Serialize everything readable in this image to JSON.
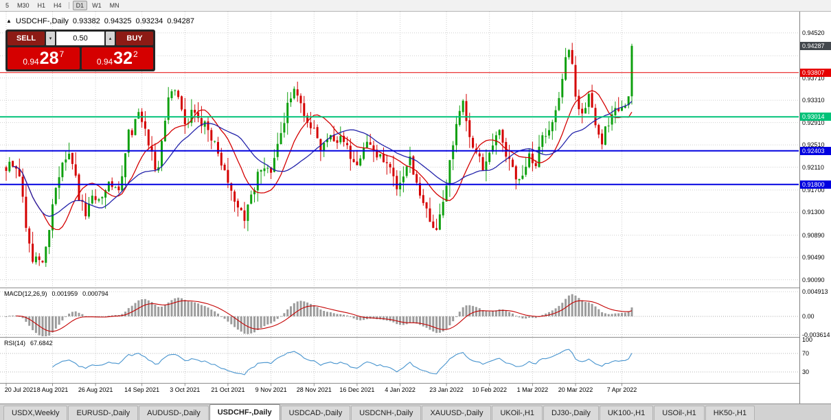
{
  "icons": {
    "symbol_arrow": "▲",
    "volume_down": "▾",
    "volume_up": "▴"
  },
  "toolbar": {
    "timeframes": [
      {
        "label": "5"
      },
      {
        "label": "M30"
      },
      {
        "label": "H1"
      },
      {
        "label": "H4",
        "divider_after": true
      },
      {
        "label": "D1",
        "active": true
      },
      {
        "label": "W1"
      },
      {
        "label": "MN"
      }
    ]
  },
  "header": {
    "symbol": "USDCHF-,Daily",
    "open": "0.93382",
    "high": "0.94325",
    "low": "0.93234",
    "close": "0.94287"
  },
  "trade_panel": {
    "sell_label": "SELL",
    "buy_label": "BUY",
    "volume": "0.50",
    "sell_price": {
      "prefix": "0.94",
      "pips": "28",
      "point": "7"
    },
    "buy_price": {
      "prefix": "0.94",
      "pips": "32",
      "point": "2"
    }
  },
  "colors": {
    "bull": "#0fa00f",
    "bear": "#d40000",
    "ma_fast": "#d40000",
    "ma_slow": "#2222aa",
    "level_red": "#e60000",
    "level_green": "#00c278",
    "level_blue": "#0000e0",
    "current_price_bg": "#43484d",
    "grid": "#cdcdcd",
    "macd_hist": "#9c9c9c",
    "macd_signal": "#c40000",
    "rsi_line": "#4693ce",
    "separator": "#8c8c8c",
    "trade_button": "#8d1b15",
    "trade_price_bg": "#d50000"
  },
  "chart_data": {
    "type": "candlestick",
    "symbol": "USDCHF-",
    "period": "Daily",
    "candle_count": 190,
    "seed": 5,
    "price_range": {
      "min": 0.8995,
      "max": 0.949
    },
    "last_candle": {
      "o": 0.93382,
      "h": 0.94325,
      "l": 0.93234,
      "c": 0.94287
    },
    "price_path": [
      [
        0,
        0.921
      ],
      [
        2,
        0.9222
      ],
      [
        4,
        0.9195
      ],
      [
        6,
        0.91
      ],
      [
        8,
        0.9048
      ],
      [
        10,
        0.9036
      ],
      [
        12,
        0.9062
      ],
      [
        14,
        0.915
      ],
      [
        17,
        0.9228
      ],
      [
        19,
        0.924
      ],
      [
        22,
        0.9158
      ],
      [
        24,
        0.913
      ],
      [
        26,
        0.9168
      ],
      [
        28,
        0.9152
      ],
      [
        31,
        0.9182
      ],
      [
        34,
        0.9162
      ],
      [
        37,
        0.9268
      ],
      [
        40,
        0.93
      ],
      [
        42,
        0.9282
      ],
      [
        44,
        0.9228
      ],
      [
        46,
        0.9206
      ],
      [
        48,
        0.93
      ],
      [
        50,
        0.9352
      ],
      [
        52,
        0.9338
      ],
      [
        54,
        0.9292
      ],
      [
        57,
        0.9312
      ],
      [
        60,
        0.9288
      ],
      [
        63,
        0.9258
      ],
      [
        65,
        0.9222
      ],
      [
        67,
        0.9188
      ],
      [
        70,
        0.9138
      ],
      [
        72,
        0.9112
      ],
      [
        74,
        0.9162
      ],
      [
        77,
        0.9215
      ],
      [
        80,
        0.9192
      ],
      [
        82,
        0.9242
      ],
      [
        85,
        0.933
      ],
      [
        88,
        0.935
      ],
      [
        91,
        0.9292
      ],
      [
        93,
        0.9282
      ],
      [
        95,
        0.9242
      ],
      [
        98,
        0.9272
      ],
      [
        101,
        0.9256
      ],
      [
        104,
        0.9232
      ],
      [
        106,
        0.9216
      ],
      [
        109,
        0.9256
      ],
      [
        112,
        0.9236
      ],
      [
        115,
        0.9212
      ],
      [
        118,
        0.9178
      ],
      [
        120,
        0.9192
      ],
      [
        122,
        0.922
      ],
      [
        125,
        0.9162
      ],
      [
        128,
        0.9112
      ],
      [
        130,
        0.9096
      ],
      [
        132,
        0.9146
      ],
      [
        134,
        0.9216
      ],
      [
        136,
        0.9282
      ],
      [
        138,
        0.933
      ],
      [
        141,
        0.9246
      ],
      [
        144,
        0.9216
      ],
      [
        146,
        0.9246
      ],
      [
        149,
        0.927
      ],
      [
        152,
        0.9222
      ],
      [
        155,
        0.9186
      ],
      [
        158,
        0.9226
      ],
      [
        160,
        0.9222
      ],
      [
        162,
        0.9266
      ],
      [
        165,
        0.9292
      ],
      [
        168,
        0.9372
      ],
      [
        170,
        0.9432
      ],
      [
        171,
        0.9402
      ],
      [
        172,
        0.9332
      ],
      [
        174,
        0.9312
      ],
      [
        176,
        0.9342
      ],
      [
        178,
        0.9296
      ],
      [
        180,
        0.9262
      ],
      [
        182,
        0.9292
      ],
      [
        184,
        0.9322
      ],
      [
        186,
        0.9312
      ],
      [
        188,
        0.9338
      ],
      [
        189,
        0.94287
      ]
    ],
    "y_axis": {
      "labels": [
        {
          "v": 0.9452,
          "t": "0.94520"
        },
        {
          "v": 0.9371,
          "t": "0.93710"
        },
        {
          "v": 0.9331,
          "t": "0.93310"
        },
        {
          "v": 0.9291,
          "t": "0.92910"
        },
        {
          "v": 0.9251,
          "t": "0.92510"
        },
        {
          "v": 0.9211,
          "t": "0.92110"
        },
        {
          "v": 0.917,
          "t": "0.91700"
        },
        {
          "v": 0.913,
          "t": "0.91300"
        },
        {
          "v": 0.9089,
          "t": "0.90890"
        },
        {
          "v": 0.9049,
          "t": "0.90490"
        },
        {
          "v": 0.9009,
          "t": "0.90090"
        }
      ],
      "grid": [
        0.9452,
        0.9411,
        0.9371,
        0.9331,
        0.9291,
        0.9251,
        0.9211,
        0.917,
        0.913,
        0.9089,
        0.9049,
        0.9009
      ]
    },
    "levels": [
      {
        "value": 0.93807,
        "text": "0.93807",
        "color_key": "level_red",
        "width": 1
      },
      {
        "value": 0.93014,
        "text": "0.93014",
        "color_key": "level_green",
        "width": 2
      },
      {
        "value": 0.92403,
        "text": "0.92403",
        "color_key": "level_blue",
        "width": 2
      },
      {
        "value": 0.918,
        "text": "0.91800",
        "color_key": "level_blue",
        "width": 2
      }
    ],
    "current_price": {
      "value": 0.94287,
      "text": "0.94287"
    },
    "moving_averages": [
      {
        "period": 12,
        "color_key": "ma_fast"
      },
      {
        "period": 24,
        "color_key": "ma_slow"
      }
    ],
    "macd": {
      "label": "MACD(12,26,9)",
      "value_main": "0.001959",
      "value_signal": "0.000794",
      "fast": 12,
      "slow": 26,
      "signal": 9,
      "axis_labels": [
        {
          "v": 0.004913,
          "t": "0.004913"
        },
        {
          "v": 0,
          "t": "0.00"
        },
        {
          "v": -0.003614,
          "t": "-0.003614"
        }
      ]
    },
    "rsi": {
      "label": "RSI(14)",
      "value": "67.6842",
      "period": 14,
      "levels": [
        70,
        30
      ],
      "axis_labels": [
        {
          "v": 100,
          "t": "100"
        },
        {
          "v": 70,
          "t": "70"
        },
        {
          "v": 30,
          "t": "30"
        }
      ]
    },
    "date_ticks": [
      {
        "i": 0,
        "label": "20 Jul 2021"
      },
      {
        "i": 14,
        "label": "8 Aug 2021"
      },
      {
        "i": 27,
        "label": "26 Aug 2021"
      },
      {
        "i": 41,
        "label": "14 Sep 2021"
      },
      {
        "i": 54,
        "label": "3 Oct 2021"
      },
      {
        "i": 67,
        "label": "21 Oct 2021"
      },
      {
        "i": 80,
        "label": "9 Nov 2021"
      },
      {
        "i": 93,
        "label": "28 Nov 2021"
      },
      {
        "i": 106,
        "label": "16 Dec 2021"
      },
      {
        "i": 119,
        "label": "4 Jan 2022"
      },
      {
        "i": 133,
        "label": "23 Jan 2022"
      },
      {
        "i": 146,
        "label": "10 Feb 2022"
      },
      {
        "i": 159,
        "label": "1 Mar 2022"
      },
      {
        "i": 172,
        "label": "20 Mar 2022"
      },
      {
        "i": 186,
        "label": "7 Apr 2022"
      }
    ]
  },
  "tabs": [
    {
      "label": "USDX,Weekly"
    },
    {
      "label": "EURUSD-,Daily"
    },
    {
      "label": "AUDUSD-,Daily"
    },
    {
      "label": "USDCHF-,Daily",
      "active": true
    },
    {
      "label": "USDCAD-,Daily"
    },
    {
      "label": "USDCNH-,Daily"
    },
    {
      "label": "XAUUSD-,Daily"
    },
    {
      "label": "UKOil-,H1"
    },
    {
      "label": "DJ30-,Daily"
    },
    {
      "label": "UK100-,H1"
    },
    {
      "label": "USOil-,H1"
    },
    {
      "label": "HK50-,H1"
    }
  ]
}
